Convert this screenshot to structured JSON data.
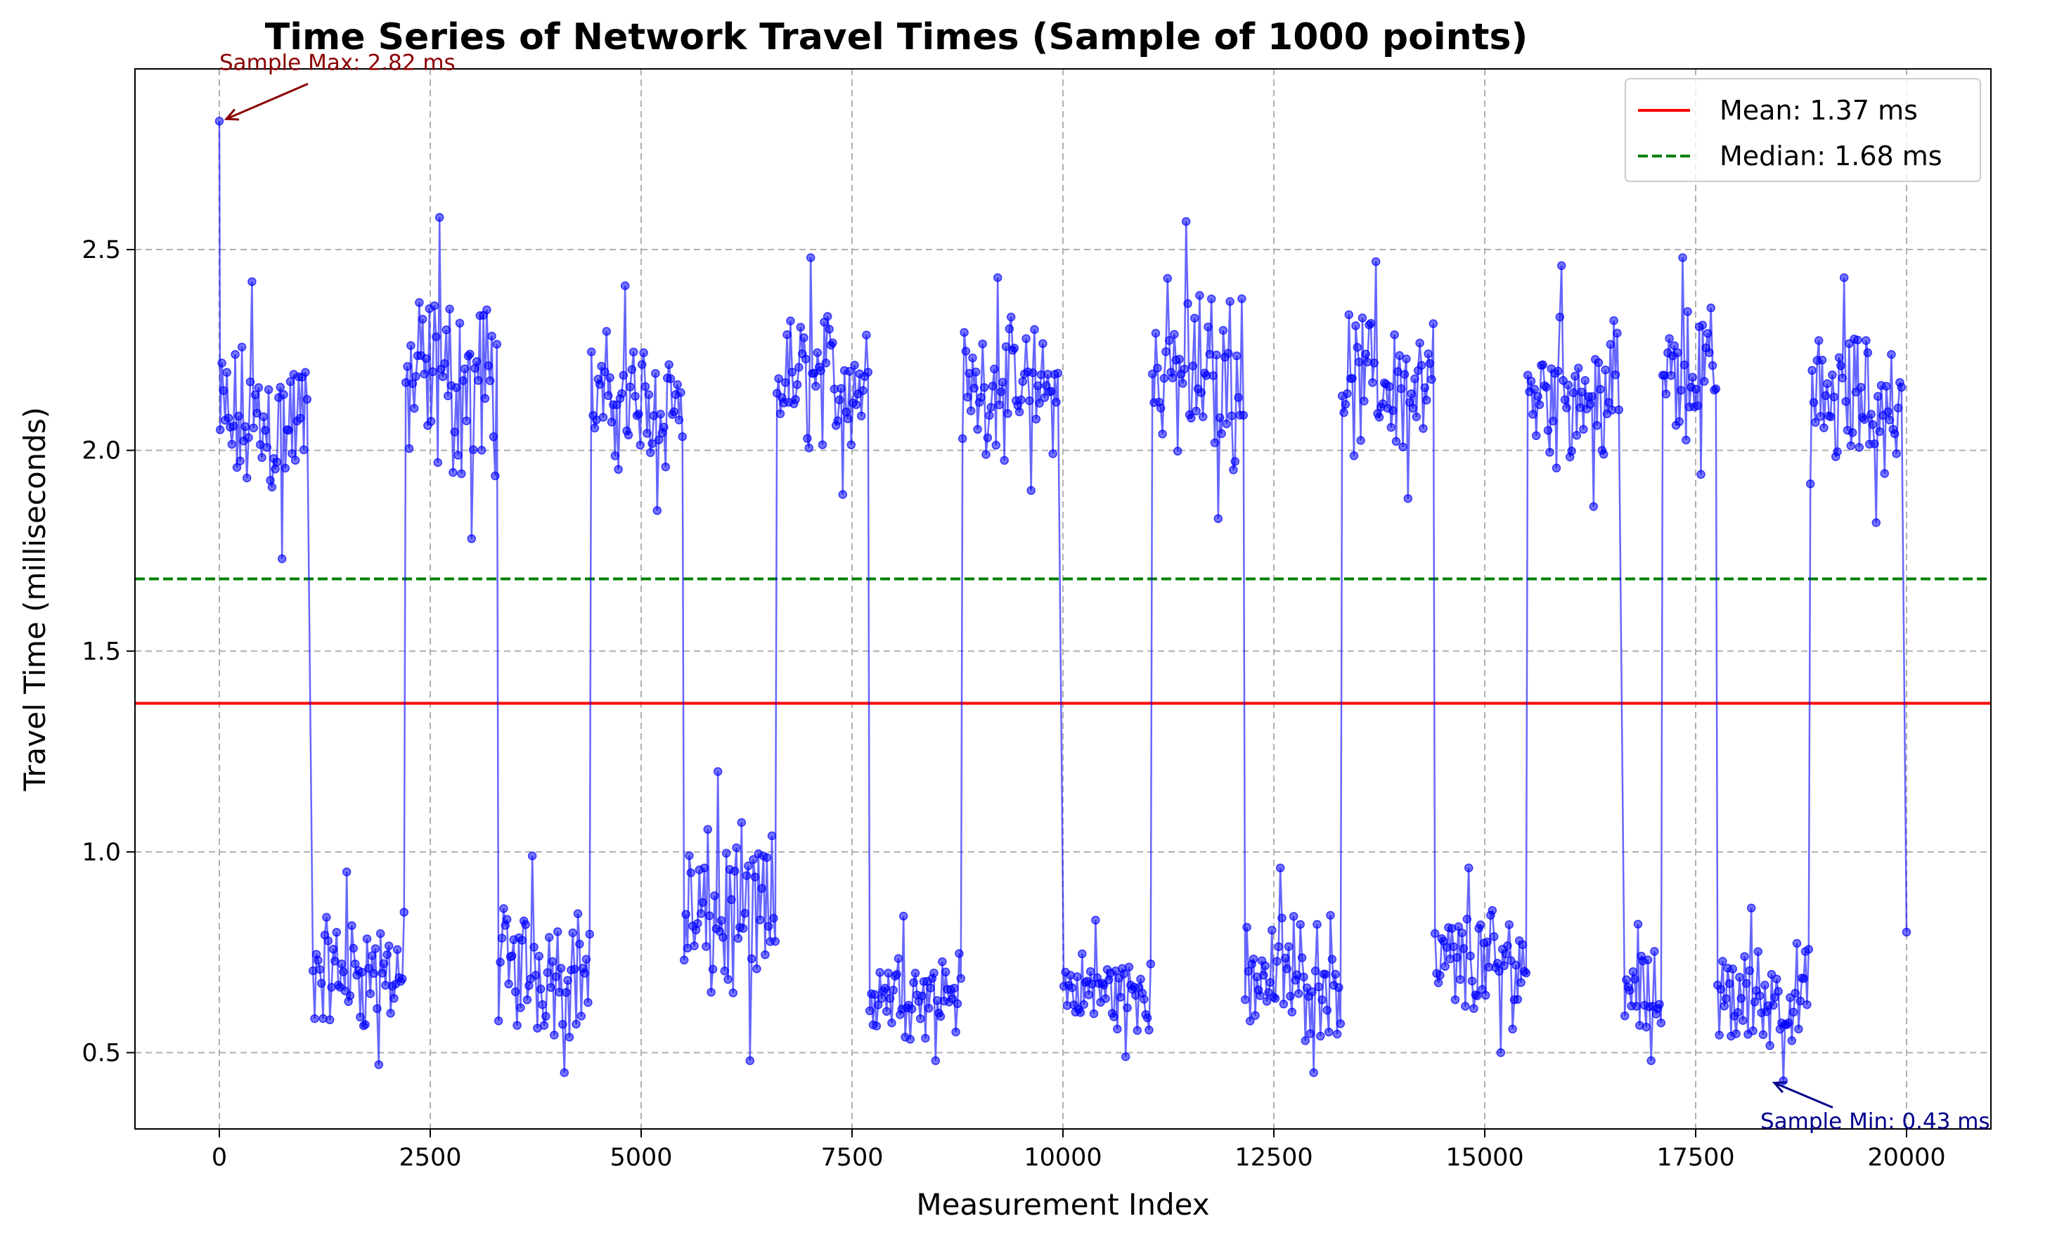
{
  "chart_data": {
    "type": "line",
    "title": "Time Series of Network Travel Times (Sample of 1000 points)",
    "xlabel": "Measurement Index",
    "ylabel": "Travel Time (milliseconds)",
    "xlim": [
      -1000,
      21000
    ],
    "ylim": [
      0.31,
      2.95
    ],
    "xticks": [
      0,
      2500,
      5000,
      7500,
      10000,
      12500,
      15000,
      17500,
      20000
    ],
    "xtick_labels": [
      "0",
      "2500",
      "5000",
      "7500",
      "10000",
      "12500",
      "15000",
      "17500",
      "20000"
    ],
    "yticks": [
      0.5,
      1.0,
      1.5,
      2.0,
      2.5
    ],
    "ytick_labels": [
      "0.5",
      "1.0",
      "1.5",
      "2.0",
      "2.5"
    ],
    "grid": true,
    "legend_position": "upper right",
    "series": {
      "color": "#0000ff",
      "segments": [
        {
          "x": [
            0,
            1050
          ],
          "low": 1.73,
          "high": 2.42,
          "level": "high"
        },
        {
          "x": [
            1100,
            2200
          ],
          "low": 0.47,
          "high": 0.95,
          "level": "low"
        },
        {
          "x": [
            2200,
            3300
          ],
          "low": 1.78,
          "high": 2.58,
          "level": "high"
        },
        {
          "x": [
            3300,
            4400
          ],
          "low": 0.45,
          "high": 0.99,
          "level": "low"
        },
        {
          "x": [
            4400,
            5500
          ],
          "low": 1.85,
          "high": 2.41,
          "level": "high"
        },
        {
          "x": [
            5500,
            6600
          ],
          "low": 0.48,
          "high": 1.2,
          "level": "low"
        },
        {
          "x": [
            6600,
            7700
          ],
          "low": 1.89,
          "high": 2.48,
          "level": "high"
        },
        {
          "x": [
            7700,
            8800
          ],
          "low": 0.48,
          "high": 0.84,
          "level": "low"
        },
        {
          "x": [
            8800,
            9950
          ],
          "low": 1.9,
          "high": 2.43,
          "level": "high"
        },
        {
          "x": [
            10000,
            11050
          ],
          "low": 0.49,
          "high": 0.83,
          "level": "low"
        },
        {
          "x": [
            11050,
            12150
          ],
          "low": 1.83,
          "high": 2.57,
          "level": "high"
        },
        {
          "x": [
            12150,
            13300
          ],
          "low": 0.45,
          "high": 0.96,
          "level": "low"
        },
        {
          "x": [
            13300,
            14400
          ],
          "low": 1.88,
          "high": 2.47,
          "level": "high"
        },
        {
          "x": [
            14400,
            15500
          ],
          "low": 0.5,
          "high": 0.96,
          "level": "low"
        },
        {
          "x": [
            15500,
            16600
          ],
          "low": 1.86,
          "high": 2.46,
          "level": "high"
        },
        {
          "x": [
            16650,
            17100
          ],
          "low": 0.48,
          "high": 0.82,
          "level": "low"
        },
        {
          "x": [
            17100,
            17750
          ],
          "low": 1.94,
          "high": 2.48,
          "level": "high"
        },
        {
          "x": [
            17750,
            18850
          ],
          "low": 0.43,
          "high": 0.86,
          "level": "low"
        },
        {
          "x": [
            18850,
            19950
          ],
          "low": 1.82,
          "high": 2.43,
          "level": "high"
        }
      ],
      "start_point": [
        0,
        2.82
      ],
      "end_point": [
        20000,
        0.8
      ]
    },
    "reference_lines": [
      {
        "name": "Mean: 1.37 ms",
        "y": 1.37,
        "color": "#ff0000",
        "style": "solid"
      },
      {
        "name": "Median: 1.68 ms",
        "y": 1.68,
        "color": "#008000",
        "style": "dashed"
      }
    ],
    "annotations": [
      {
        "text": "Sample Max: 2.82 ms",
        "x": 0,
        "y": 2.82,
        "color": "#8b0000"
      },
      {
        "text": "Sample Min: 0.43 ms",
        "x": 18350,
        "y": 0.43,
        "color": "#00008b"
      }
    ]
  }
}
